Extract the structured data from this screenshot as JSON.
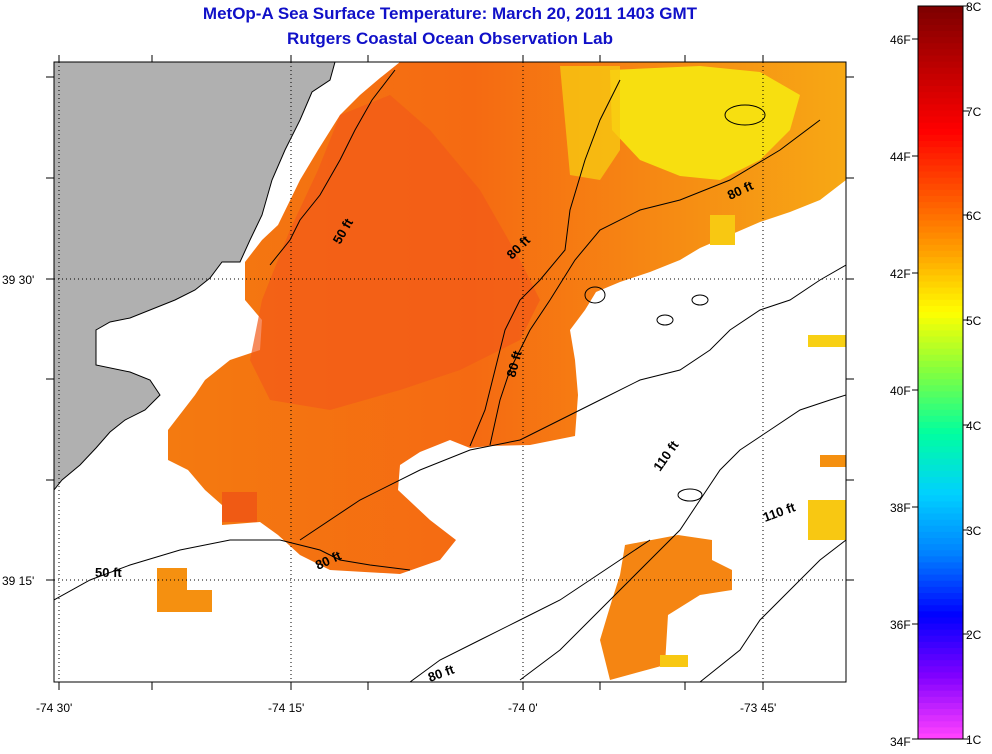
{
  "header": {
    "title": "MetOp-A Sea Surface Temperature:  March 20, 2011 1403 GMT",
    "subtitle": "Rutgers Coastal Ocean Observation Lab"
  },
  "map": {
    "lon_labels": [
      "-74 30'",
      "-74 15'",
      "-74 0'",
      "-73 45'"
    ],
    "lat_labels": [
      "39 30'",
      "39 15'"
    ],
    "contour_labels": [
      "50 ft",
      "50 ft",
      "80 ft",
      "80 ft",
      "80 ft",
      "80 ft",
      "80 ft",
      "110 ft",
      "110 ft"
    ],
    "colors": {
      "land": "#b0b0b0",
      "ocean_nodata": "#ffffff",
      "coast_line": "#000000"
    }
  },
  "colorbar": {
    "celsius_labels": [
      "8C",
      "7C",
      "6C",
      "5C",
      "4C",
      "3C",
      "2C",
      "1C"
    ],
    "fahrenheit_labels": [
      "46F",
      "44F",
      "42F",
      "40F",
      "38F",
      "36F",
      "34F"
    ],
    "colors": [
      "#ff40ff",
      "#8000ff",
      "#0000ff",
      "#0080ff",
      "#00d0ff",
      "#00ffa0",
      "#80ff40",
      "#ffff00",
      "#ffa000",
      "#ff5000",
      "#ff0000",
      "#c00000",
      "#800000"
    ]
  }
}
